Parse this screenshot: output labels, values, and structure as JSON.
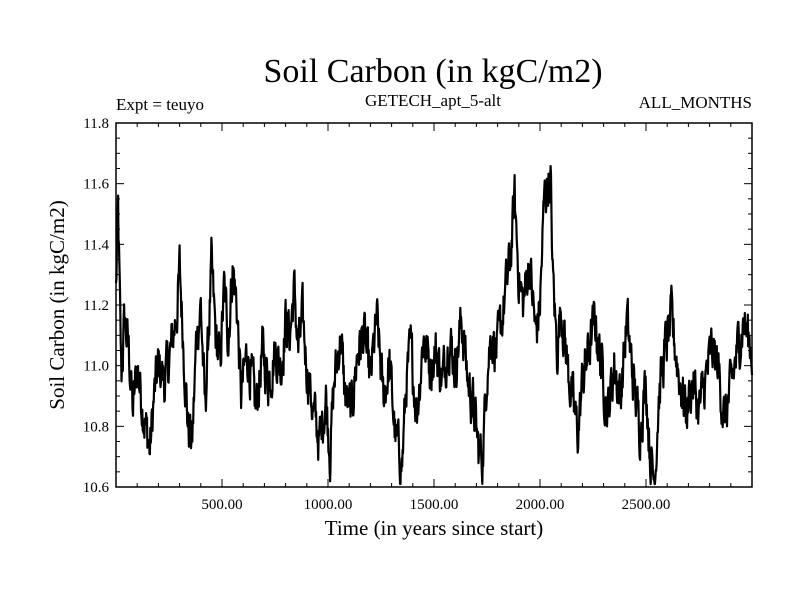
{
  "chart_data": {
    "type": "line",
    "title": "Soil Carbon (in kgC/m2)",
    "subtitle_left": "Expt = teuyo",
    "subtitle_center": "GETECH_apt_5-alt",
    "subtitle_right": "ALL_MONTHS",
    "xlabel": "Time (in years since start)",
    "ylabel": "Soil Carbon (in kgC/m2)",
    "xlim": [
      0,
      3000
    ],
    "ylim": [
      10.6,
      11.8
    ],
    "xticks": [
      500,
      1000,
      1500,
      2000,
      2500
    ],
    "xtick_labels": [
      "500.00",
      "1000.00",
      "1500.00",
      "2000.00",
      "2500.00"
    ],
    "yticks": [
      10.6,
      10.8,
      11.0,
      11.2,
      11.4,
      11.6,
      11.8
    ],
    "ytick_labels": [
      "10.6",
      "10.8",
      "11.0",
      "11.2",
      "11.4",
      "11.6",
      "11.8"
    ],
    "series": [
      {
        "x": [
          0,
          10,
          25,
          40,
          60,
          80,
          100,
          120,
          140,
          160,
          180,
          200,
          230,
          260,
          290,
          300,
          320,
          340,
          360,
          380,
          400,
          420,
          450,
          470,
          490,
          510,
          530,
          550,
          570,
          590,
          620,
          640,
          660,
          690,
          720,
          750,
          780,
          800,
          820,
          840,
          860,
          880,
          900,
          930,
          960,
          990,
          1010,
          1030,
          1060,
          1080,
          1110,
          1140,
          1170,
          1200,
          1230,
          1260,
          1290,
          1320,
          1350,
          1370,
          1390,
          1420,
          1450,
          1480,
          1510,
          1540,
          1570,
          1600,
          1630,
          1660,
          1690,
          1710,
          1730,
          1750,
          1770,
          1800,
          1830,
          1860,
          1880,
          1900,
          1920,
          1950,
          1980,
          2000,
          2020,
          2040,
          2050,
          2060,
          2080,
          2100,
          2130,
          2160,
          2180,
          2200,
          2230,
          2260,
          2290,
          2320,
          2350,
          2380,
          2410,
          2440,
          2470,
          2500,
          2520,
          2540,
          2560,
          2590,
          2620,
          2640,
          2660,
          2690,
          2720,
          2750,
          2780,
          2810,
          2840,
          2870,
          2900,
          2930,
          2960,
          3000
        ],
        "y": [
          11.25,
          11.5,
          10.95,
          11.15,
          11.05,
          10.85,
          11.0,
          10.9,
          10.8,
          10.72,
          10.9,
          11.0,
          10.95,
          11.05,
          11.2,
          11.32,
          11.05,
          10.8,
          10.75,
          11.1,
          11.2,
          10.85,
          11.32,
          11.1,
          11.0,
          11.25,
          11.1,
          11.33,
          11.2,
          10.9,
          11.05,
          10.95,
          10.85,
          11.05,
          10.95,
          11.05,
          11.0,
          11.15,
          11.1,
          11.25,
          11.05,
          11.15,
          11.0,
          10.85,
          10.75,
          10.9,
          10.72,
          10.95,
          11.1,
          10.9,
          10.85,
          11.05,
          11.1,
          10.95,
          11.15,
          10.9,
          11.0,
          10.75,
          10.68,
          10.95,
          11.05,
          10.85,
          11.1,
          11.0,
          11.05,
          10.95,
          11.1,
          11.0,
          11.15,
          10.95,
          10.85,
          10.72,
          10.7,
          11.0,
          11.1,
          11.05,
          11.2,
          11.35,
          11.55,
          11.3,
          11.2,
          11.35,
          11.1,
          11.2,
          11.55,
          11.62,
          11.6,
          11.3,
          11.05,
          11.2,
          11.0,
          10.85,
          10.78,
          10.95,
          11.05,
          11.15,
          11.0,
          10.85,
          11.0,
          10.9,
          11.15,
          10.95,
          10.8,
          10.95,
          10.7,
          10.62,
          10.9,
          11.05,
          11.15,
          11.05,
          10.95,
          10.85,
          10.95,
          10.85,
          10.95,
          11.05,
          11.0,
          10.82,
          10.92,
          11.05,
          11.15,
          11.05
        ]
      }
    ],
    "grid": false,
    "line_color": "#000000"
  }
}
